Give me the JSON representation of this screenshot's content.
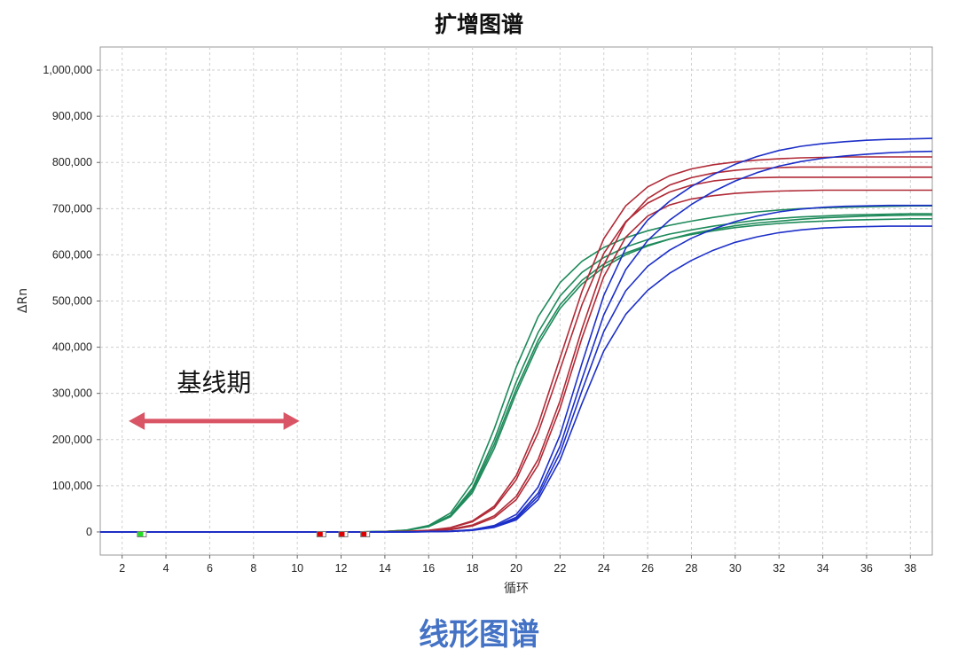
{
  "title": "扩增图谱",
  "caption": "线形图谱",
  "chart_data": {
    "type": "line",
    "xlabel": "循环",
    "ylabel": "ΔRn",
    "xlim": [
      1,
      39
    ],
    "ylim": [
      -50000,
      1050000
    ],
    "xticks": [
      2,
      4,
      6,
      8,
      10,
      12,
      14,
      16,
      18,
      20,
      22,
      24,
      26,
      28,
      30,
      32,
      34,
      36,
      38
    ],
    "yticks": [
      0,
      100000,
      200000,
      300000,
      400000,
      500000,
      600000,
      700000,
      800000,
      900000,
      1000000
    ],
    "ytick_labels": [
      "0",
      "100,000",
      "200,000",
      "300,000",
      "400,000",
      "500,000",
      "600,000",
      "700,000",
      "800,000",
      "900,000",
      "1,000,000"
    ],
    "grid": true,
    "annotation": {
      "text": "基线期",
      "arrow_from_x": 2.3,
      "arrow_to_x": 10.1,
      "arrow_y": 240000,
      "arrow_color": "#d95565"
    },
    "baseline_markers": [
      {
        "x": 2.9,
        "color": "#22dd22"
      },
      {
        "x": 11.1,
        "color": "#dd0000"
      },
      {
        "x": 12.1,
        "color": "#dd0000"
      },
      {
        "x": 13.1,
        "color": "#dd0000"
      }
    ],
    "x": [
      1,
      2,
      3,
      4,
      5,
      6,
      7,
      8,
      9,
      10,
      11,
      12,
      13,
      14,
      15,
      16,
      17,
      18,
      19,
      20,
      21,
      22,
      23,
      24,
      25,
      26,
      27,
      28,
      29,
      30,
      31,
      32,
      33,
      34,
      35,
      36,
      37,
      38,
      39
    ],
    "series": [
      {
        "color": "#1e8a5a",
        "values": [
          0,
          0,
          0,
          0,
          0,
          0,
          0,
          0,
          0,
          0,
          0,
          0,
          300,
          1100,
          4100,
          14000,
          41000,
          107000,
          224000,
          357000,
          466000,
          540000,
          586000,
          616000,
          637000,
          652000,
          664000,
          673000,
          681000,
          688000,
          693000,
          697000,
          700000,
          702000,
          703000,
          704000,
          705000,
          706000,
          706000
        ]
      },
      {
        "color": "#1e8a5a",
        "values": [
          0,
          0,
          0,
          0,
          0,
          0,
          0,
          0,
          0,
          0,
          0,
          0,
          300,
          1000,
          3600,
          12500,
          36000,
          95000,
          200000,
          325000,
          432000,
          511000,
          562000,
          594000,
          617000,
          633000,
          645000,
          654000,
          662000,
          669000,
          675000,
          679000,
          682000,
          684000,
          686000,
          687000,
          688000,
          689000,
          689000
        ]
      },
      {
        "color": "#1e8a5a",
        "values": [
          0,
          0,
          0,
          0,
          0,
          0,
          0,
          0,
          0,
          0,
          0,
          0,
          300,
          1000,
          3500,
          12000,
          35000,
          90000,
          190000,
          310000,
          415000,
          492000,
          545000,
          580000,
          604000,
          621000,
          634000,
          644000,
          652000,
          659000,
          664000,
          668000,
          671000,
          673000,
          675000,
          676000,
          677000,
          678000,
          678000
        ]
      },
      {
        "color": "#1e8a5a",
        "values": [
          0,
          0,
          0,
          0,
          0,
          0,
          0,
          0,
          0,
          0,
          0,
          0,
          300,
          900,
          3300,
          11500,
          33000,
          85000,
          181000,
          301000,
          406000,
          484000,
          537000,
          573000,
          600000,
          619000,
          634000,
          646000,
          655000,
          663000,
          669000,
          673000,
          677000,
          680000,
          682000,
          684000,
          685000,
          686000,
          686000
        ]
      },
      {
        "color": "#b02a36",
        "values": [
          0,
          0,
          0,
          0,
          0,
          0,
          0,
          0,
          0,
          0,
          0,
          0,
          200,
          400,
          1200,
          3500,
          9500,
          24000,
          56000,
          122000,
          232000,
          377000,
          521000,
          635000,
          706000,
          747000,
          771000,
          786000,
          795000,
          801000,
          805000,
          808000,
          810000,
          811000,
          812000,
          812000,
          812000,
          812000,
          812000
        ]
      },
      {
        "color": "#b02a36",
        "values": [
          0,
          0,
          0,
          0,
          0,
          0,
          0,
          0,
          0,
          0,
          0,
          0,
          200,
          400,
          1100,
          3200,
          8800,
          22000,
          52000,
          113000,
          215000,
          352000,
          492000,
          603000,
          672000,
          712000,
          736000,
          751000,
          760000,
          765000,
          767000,
          768000,
          768000,
          768000,
          768000,
          768000,
          768000,
          768000,
          768000
        ]
      },
      {
        "color": "#b02a36",
        "values": [
          0,
          0,
          0,
          0,
          0,
          0,
          0,
          0,
          0,
          0,
          0,
          0,
          100,
          200,
          700,
          2100,
          6000,
          15000,
          35000,
          77000,
          157000,
          284000,
          440000,
          578000,
          670000,
          722000,
          751000,
          767000,
          777000,
          783000,
          787000,
          789000,
          790000,
          790000,
          790000,
          790000,
          790000,
          790000,
          790000
        ]
      },
      {
        "color": "#b02a36",
        "values": [
          0,
          0,
          0,
          0,
          0,
          0,
          0,
          0,
          0,
          0,
          0,
          0,
          100,
          200,
          600,
          1800,
          5000,
          13000,
          31000,
          70000,
          145000,
          268000,
          420000,
          553000,
          638000,
          684000,
          708000,
          721000,
          728000,
          733000,
          736000,
          738000,
          739000,
          740000,
          740000,
          740000,
          740000,
          740000,
          740000
        ]
      },
      {
        "color": "#1c2fc8",
        "values": [
          0,
          0,
          0,
          0,
          0,
          0,
          0,
          0,
          0,
          0,
          0,
          0,
          0,
          100,
          200,
          600,
          1600,
          5000,
          14000,
          38000,
          97000,
          210000,
          365000,
          512000,
          614000,
          675000,
          716000,
          748000,
          774000,
          796000,
          813000,
          826000,
          835000,
          841000,
          845000,
          848000,
          850000,
          851000,
          852000
        ]
      },
      {
        "color": "#1c2fc8",
        "values": [
          0,
          0,
          0,
          0,
          0,
          0,
          0,
          0,
          0,
          0,
          0,
          0,
          0,
          100,
          200,
          500,
          1400,
          4200,
          12000,
          32000,
          84000,
          186000,
          331000,
          470000,
          568000,
          631000,
          675000,
          709000,
          737000,
          760000,
          778000,
          792000,
          802000,
          809000,
          814000,
          818000,
          821000,
          823000,
          824000
        ]
      },
      {
        "color": "#1c2fc8",
        "values": [
          0,
          0,
          0,
          0,
          0,
          0,
          0,
          0,
          0,
          0,
          0,
          0,
          0,
          100,
          200,
          500,
          1300,
          3900,
          11000,
          29000,
          77000,
          171000,
          306000,
          434000,
          522000,
          575000,
          610000,
          636000,
          656000,
          672000,
          684000,
          693000,
          699000,
          703000,
          705000,
          706000,
          707000,
          707000,
          707000
        ]
      },
      {
        "color": "#1c2fc8",
        "values": [
          0,
          0,
          0,
          0,
          0,
          0,
          0,
          0,
          0,
          0,
          0,
          0,
          0,
          100,
          200,
          400,
          1100,
          3400,
          9800,
          26000,
          70000,
          156000,
          278000,
          392000,
          471000,
          523000,
          560000,
          588000,
          610000,
          627000,
          639000,
          648000,
          654000,
          658000,
          660000,
          661000,
          662000,
          662000,
          662000
        ]
      }
    ]
  }
}
